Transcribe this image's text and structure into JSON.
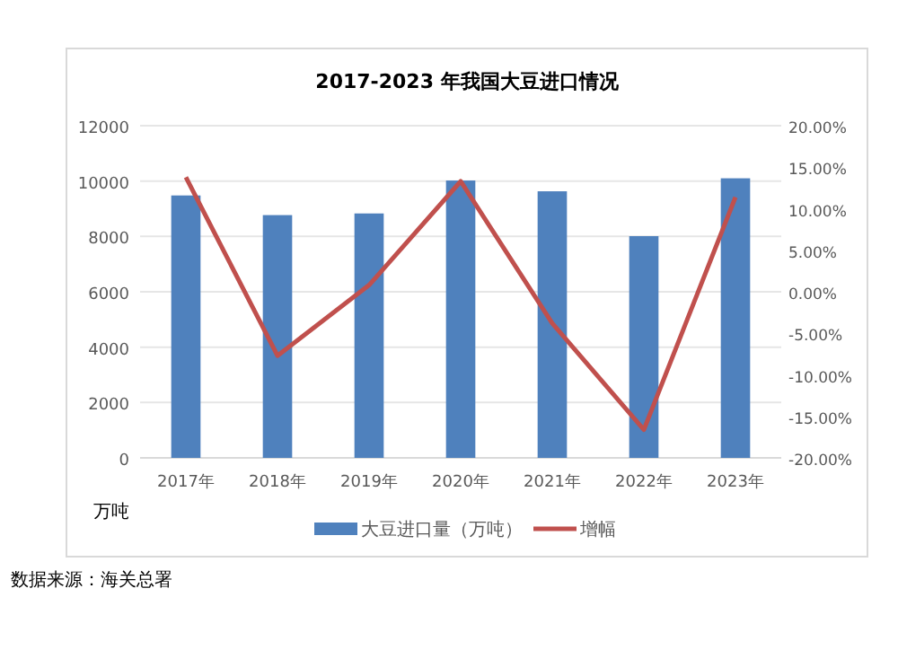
{
  "chart_data": {
    "type": "bar",
    "title": "2017-2023 年我国大豆进口情况",
    "ylabel": "万吨",
    "categories": [
      "2017年",
      "2018年",
      "2019年",
      "2020年",
      "2021年",
      "2022年",
      "2023年"
    ],
    "series": [
      {
        "name": "大豆进口量（万吨）",
        "color": "#4f81bd",
        "values": [
          9480,
          8770,
          8830,
          10020,
          9630,
          8010,
          10100
        ]
      },
      {
        "name": "增幅",
        "type": "line",
        "axis": "y2",
        "color": "#c0504d",
        "values": [
          13.8,
          -7.7,
          0.8,
          13.3,
          -3.8,
          -16.6,
          11.4
        ]
      }
    ],
    "ylim": [
      0,
      12000
    ],
    "yticks": [
      0,
      2000,
      4000,
      6000,
      8000,
      10000,
      12000
    ],
    "y2lim": [
      -20,
      20
    ],
    "y2ticks": [
      {
        "value": -20,
        "label": "-20.00%"
      },
      {
        "value": -15,
        "label": "-15.00%"
      },
      {
        "value": -10,
        "label": "-10.00%"
      },
      {
        "value": -5,
        "label": "-5.00%"
      },
      {
        "value": 0,
        "label": "0.00%"
      },
      {
        "value": 5,
        "label": "5.00%"
      },
      {
        "value": 10,
        "label": "10.00%"
      },
      {
        "value": 15,
        "label": "15.00%"
      },
      {
        "value": 20,
        "label": "20.00%"
      }
    ],
    "grid": "y",
    "legend": "bottom",
    "marker": "none",
    "line_style": "solid",
    "annotations": [
      "数据来源：海关总署"
    ]
  }
}
